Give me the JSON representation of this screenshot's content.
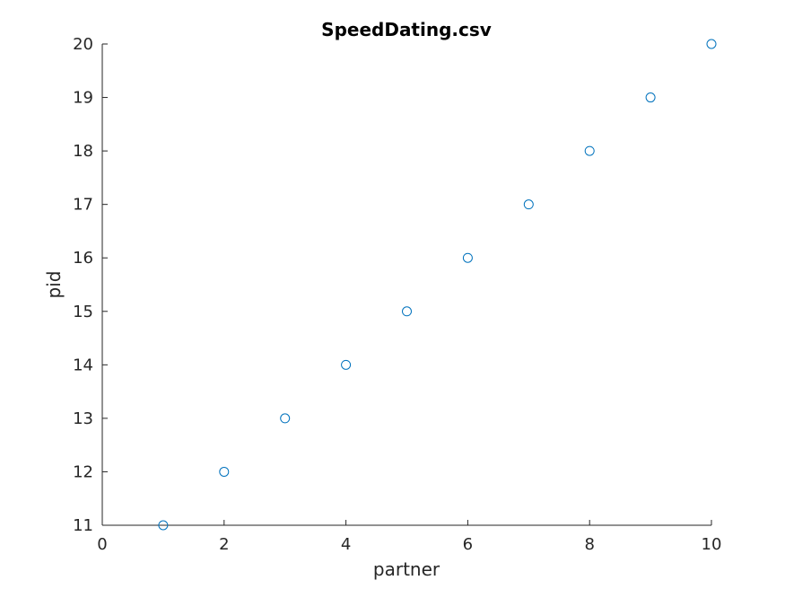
{
  "chart_data": {
    "type": "scatter",
    "title": "SpeedDating.csv",
    "xlabel": "partner",
    "ylabel": "pid",
    "xlim": [
      0,
      10
    ],
    "ylim": [
      11,
      20
    ],
    "xticks": [
      0,
      2,
      4,
      6,
      8,
      10
    ],
    "yticks": [
      11,
      12,
      13,
      14,
      15,
      16,
      17,
      18,
      19,
      20
    ],
    "grid": false,
    "legend": "none",
    "marker": "circle",
    "marker_color": "#0072BD",
    "x": [
      1,
      2,
      3,
      4,
      5,
      6,
      7,
      8,
      9,
      10
    ],
    "y": [
      11,
      12,
      13,
      14,
      15,
      16,
      17,
      18,
      19,
      20
    ]
  }
}
